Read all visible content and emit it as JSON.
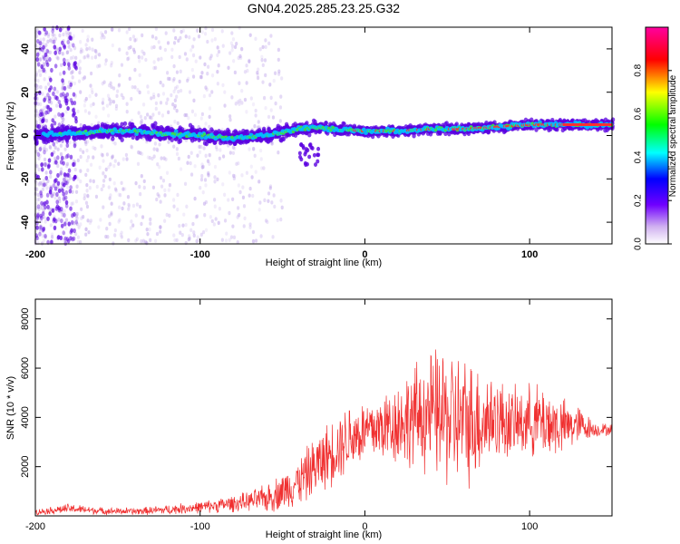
{
  "title": "GN04.2025.285.23.25.G32",
  "chart_data": [
    {
      "type": "heatmap",
      "name": "spectrogram",
      "xlabel": "Height of straight line (km)",
      "ylabel": "Frequency (Hz)",
      "xlim": [
        -200,
        150
      ],
      "ylim": [
        -50,
        50
      ],
      "xticks": [
        -200,
        -100,
        0,
        100
      ],
      "yticks": [
        -40,
        -20,
        0,
        20,
        40
      ],
      "colorbar": {
        "label": "Normalized spectral amplitude",
        "range": [
          0,
          1
        ],
        "ticks": [
          "0.0",
          "0.2",
          "0.4",
          "0.6",
          "0.8"
        ]
      },
      "ridge": {
        "x": [
          -200,
          -180,
          -160,
          -140,
          -120,
          -100,
          -80,
          -60,
          -40,
          -30,
          -20,
          0,
          20,
          40,
          60,
          80,
          100,
          120,
          150
        ],
        "y": [
          0,
          1,
          2,
          2,
          1,
          0,
          -1,
          0,
          3,
          4,
          3,
          2,
          2,
          3,
          3,
          4,
          5,
          5,
          5
        ]
      },
      "colors": {
        "background_scatter": "#b89be8",
        "band_low": "#5a00e0",
        "band_mid": "#00c0ff",
        "band_high": "#40e040",
        "peak": "#ff3030"
      }
    },
    {
      "type": "line",
      "name": "snr",
      "xlabel": "Height of straight line (km)",
      "ylabel": "SNR (10 * v/v)",
      "xlim": [
        -200,
        150
      ],
      "ylim": [
        0,
        8800
      ],
      "xticks": [
        -200,
        -100,
        0,
        100
      ],
      "yticks": [
        2000,
        4000,
        6000,
        8000
      ],
      "color": "#f03030",
      "series": [
        {
          "name": "SNR",
          "envelope_x": [
            -200,
            -180,
            -160,
            -140,
            -120,
            -100,
            -80,
            -70,
            -60,
            -50,
            -40,
            -30,
            -20,
            -10,
            0,
            10,
            20,
            30,
            40,
            50,
            60,
            70,
            80,
            90,
            100,
            110,
            120,
            130,
            140,
            150
          ],
          "envelope_mean": [
            150,
            300,
            200,
            180,
            250,
            350,
            500,
            600,
            700,
            1000,
            1400,
            2000,
            2600,
            3200,
            3400,
            3600,
            3800,
            4000,
            4200,
            4000,
            3800,
            3900,
            4000,
            3700,
            3900,
            3800,
            3600,
            3700,
            3500,
            3500
          ],
          "envelope_spread": [
            120,
            200,
            150,
            150,
            200,
            250,
            350,
            400,
            600,
            800,
            1000,
            1300,
            1400,
            1500,
            1400,
            1500,
            1800,
            2200,
            2600,
            3000,
            2800,
            2400,
            1800,
            1500,
            1500,
            1600,
            1200,
            800,
            300,
            250
          ]
        }
      ]
    }
  ]
}
